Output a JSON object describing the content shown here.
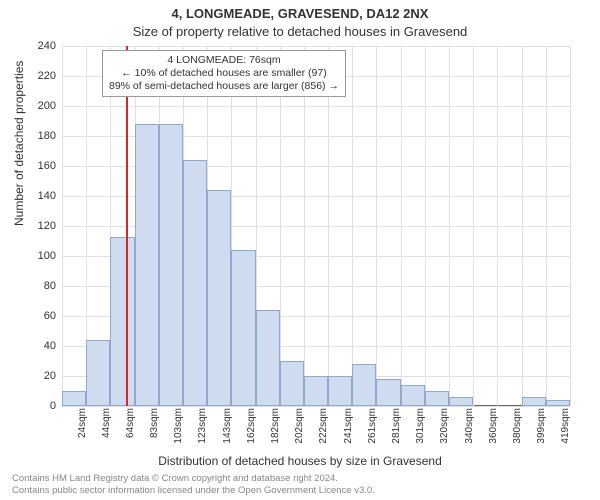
{
  "header": {
    "title1": "4, LONGMEADE, GRAVESEND, DA12 2NX",
    "title2": "Size of property relative to detached houses in Gravesend"
  },
  "chart": {
    "type": "histogram",
    "ylabel": "Number of detached properties",
    "xlabel": "Distribution of detached houses by size in Gravesend",
    "ylim": [
      0,
      240
    ],
    "ytick_step": 20,
    "yticks": [
      0,
      20,
      40,
      60,
      80,
      100,
      120,
      140,
      160,
      180,
      200,
      220,
      240
    ],
    "categories": [
      "24sqm",
      "44sqm",
      "64sqm",
      "83sqm",
      "103sqm",
      "123sqm",
      "143sqm",
      "162sqm",
      "182sqm",
      "202sqm",
      "222sqm",
      "241sqm",
      "261sqm",
      "281sqm",
      "301sqm",
      "320sqm",
      "340sqm",
      "360sqm",
      "380sqm",
      "399sqm",
      "419sqm"
    ],
    "values": [
      10,
      44,
      113,
      188,
      188,
      164,
      144,
      104,
      64,
      30,
      20,
      20,
      28,
      18,
      14,
      10,
      6,
      0,
      0,
      6,
      4
    ],
    "bar_fill": "#cfdbef",
    "bar_border": "#90a8d0",
    "grid_color": "#e0e0e0",
    "background_color": "#ffffff",
    "marker_line": {
      "position_index_fractional": 2.65,
      "color": "#d62728"
    },
    "annotation": {
      "line1": "4 LONGMEADE: 76sqm",
      "line2": "← 10% of detached houses are smaller (97)",
      "line3": "89% of semi-detached houses are larger (856) →",
      "border_color": "#999999",
      "fontsize": 10.5
    },
    "label_fontsize": 12,
    "tick_fontsize": 11
  },
  "footer": {
    "line1": "Contains HM Land Registry data © Crown copyright and database right 2024.",
    "line2": "Contains public sector information licensed under the Open Government Licence v3.0."
  }
}
